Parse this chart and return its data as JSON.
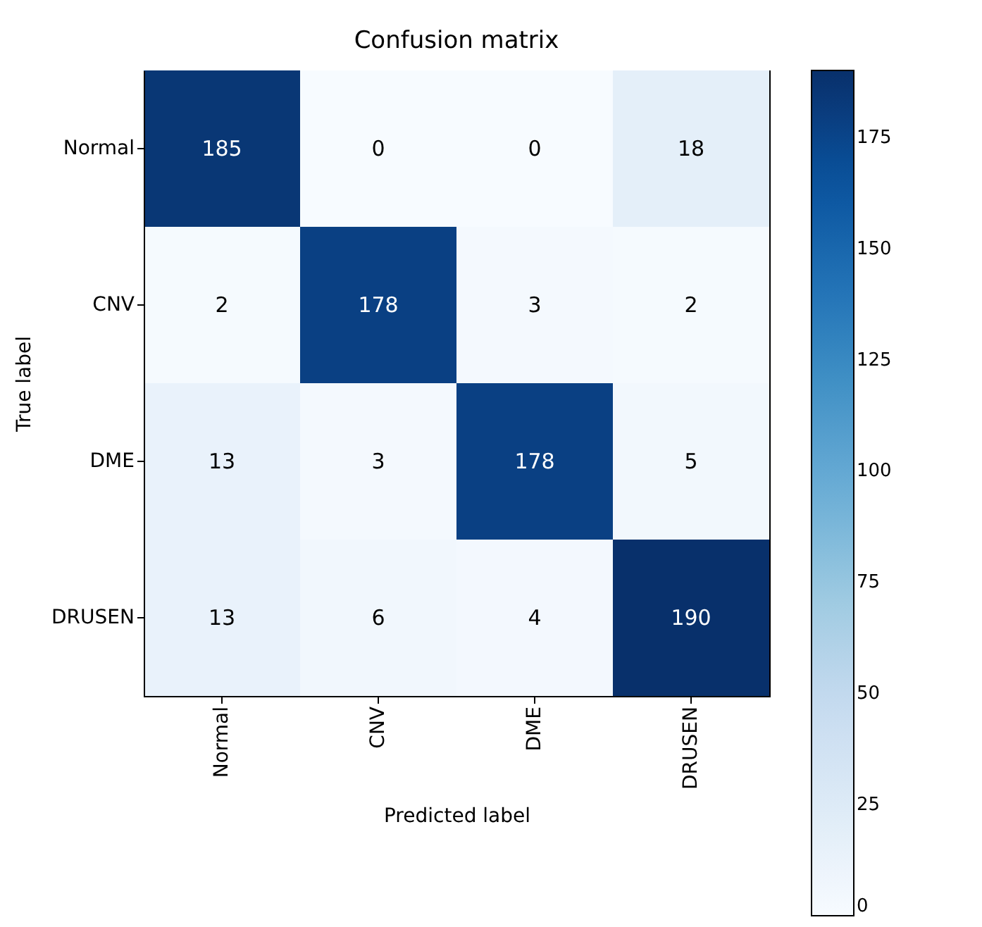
{
  "chart_data": {
    "type": "heatmap",
    "title": "Confusion matrix",
    "xlabel": "Predicted label",
    "ylabel": "True label",
    "categories": [
      "Normal",
      "CNV",
      "DME",
      "DRUSEN"
    ],
    "y_categories": [
      "Normal",
      "CNV",
      "DME",
      "DRUSEN"
    ],
    "cells": [
      [
        185,
        0,
        0,
        18
      ],
      [
        2,
        178,
        3,
        2
      ],
      [
        13,
        3,
        178,
        5
      ],
      [
        13,
        6,
        4,
        190
      ]
    ],
    "clim": [
      0,
      190
    ],
    "cticks": [
      0,
      25,
      50,
      75,
      100,
      125,
      150,
      175
    ],
    "data_labels": true
  }
}
